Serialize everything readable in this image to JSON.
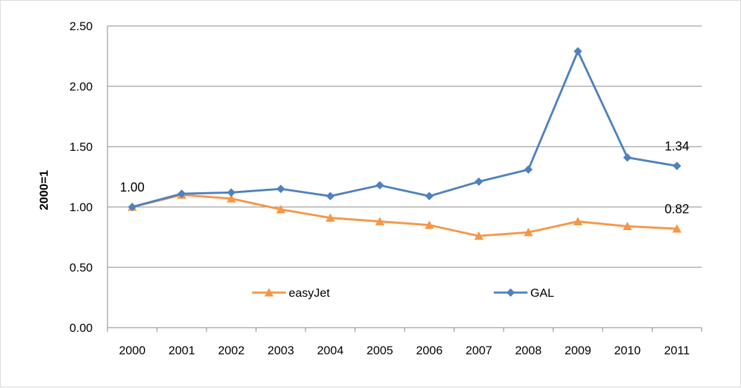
{
  "chart_data": {
    "type": "line",
    "title": "",
    "xlabel": "",
    "ylabel": "2000=1",
    "categories": [
      "2000",
      "2001",
      "2002",
      "2003",
      "2004",
      "2005",
      "2006",
      "2007",
      "2008",
      "2009",
      "2010",
      "2011"
    ],
    "ylim": [
      0,
      2.5
    ],
    "yticks": [
      "0.00",
      "0.50",
      "1.00",
      "1.50",
      "2.00",
      "2.50"
    ],
    "grid": true,
    "legend_position": "inside-bottom-center",
    "series": [
      {
        "name": "easyJet",
        "color": "#f79646",
        "marker": "triangle",
        "values": [
          1.0,
          1.1,
          1.07,
          0.98,
          0.91,
          0.88,
          0.85,
          0.76,
          0.79,
          0.88,
          0.84,
          0.82
        ]
      },
      {
        "name": "GAL",
        "color": "#4f81bd",
        "marker": "diamond",
        "values": [
          1.0,
          1.11,
          1.12,
          1.15,
          1.09,
          1.18,
          1.09,
          1.21,
          1.31,
          2.29,
          1.41,
          1.34
        ]
      }
    ],
    "annotations": [
      {
        "text": "1.00",
        "series": 1,
        "index": 0,
        "where": "above"
      },
      {
        "text": "1.34",
        "series": 1,
        "index": 11,
        "where": "above"
      },
      {
        "text": "0.82",
        "series": 0,
        "index": 11,
        "where": "above"
      }
    ]
  }
}
